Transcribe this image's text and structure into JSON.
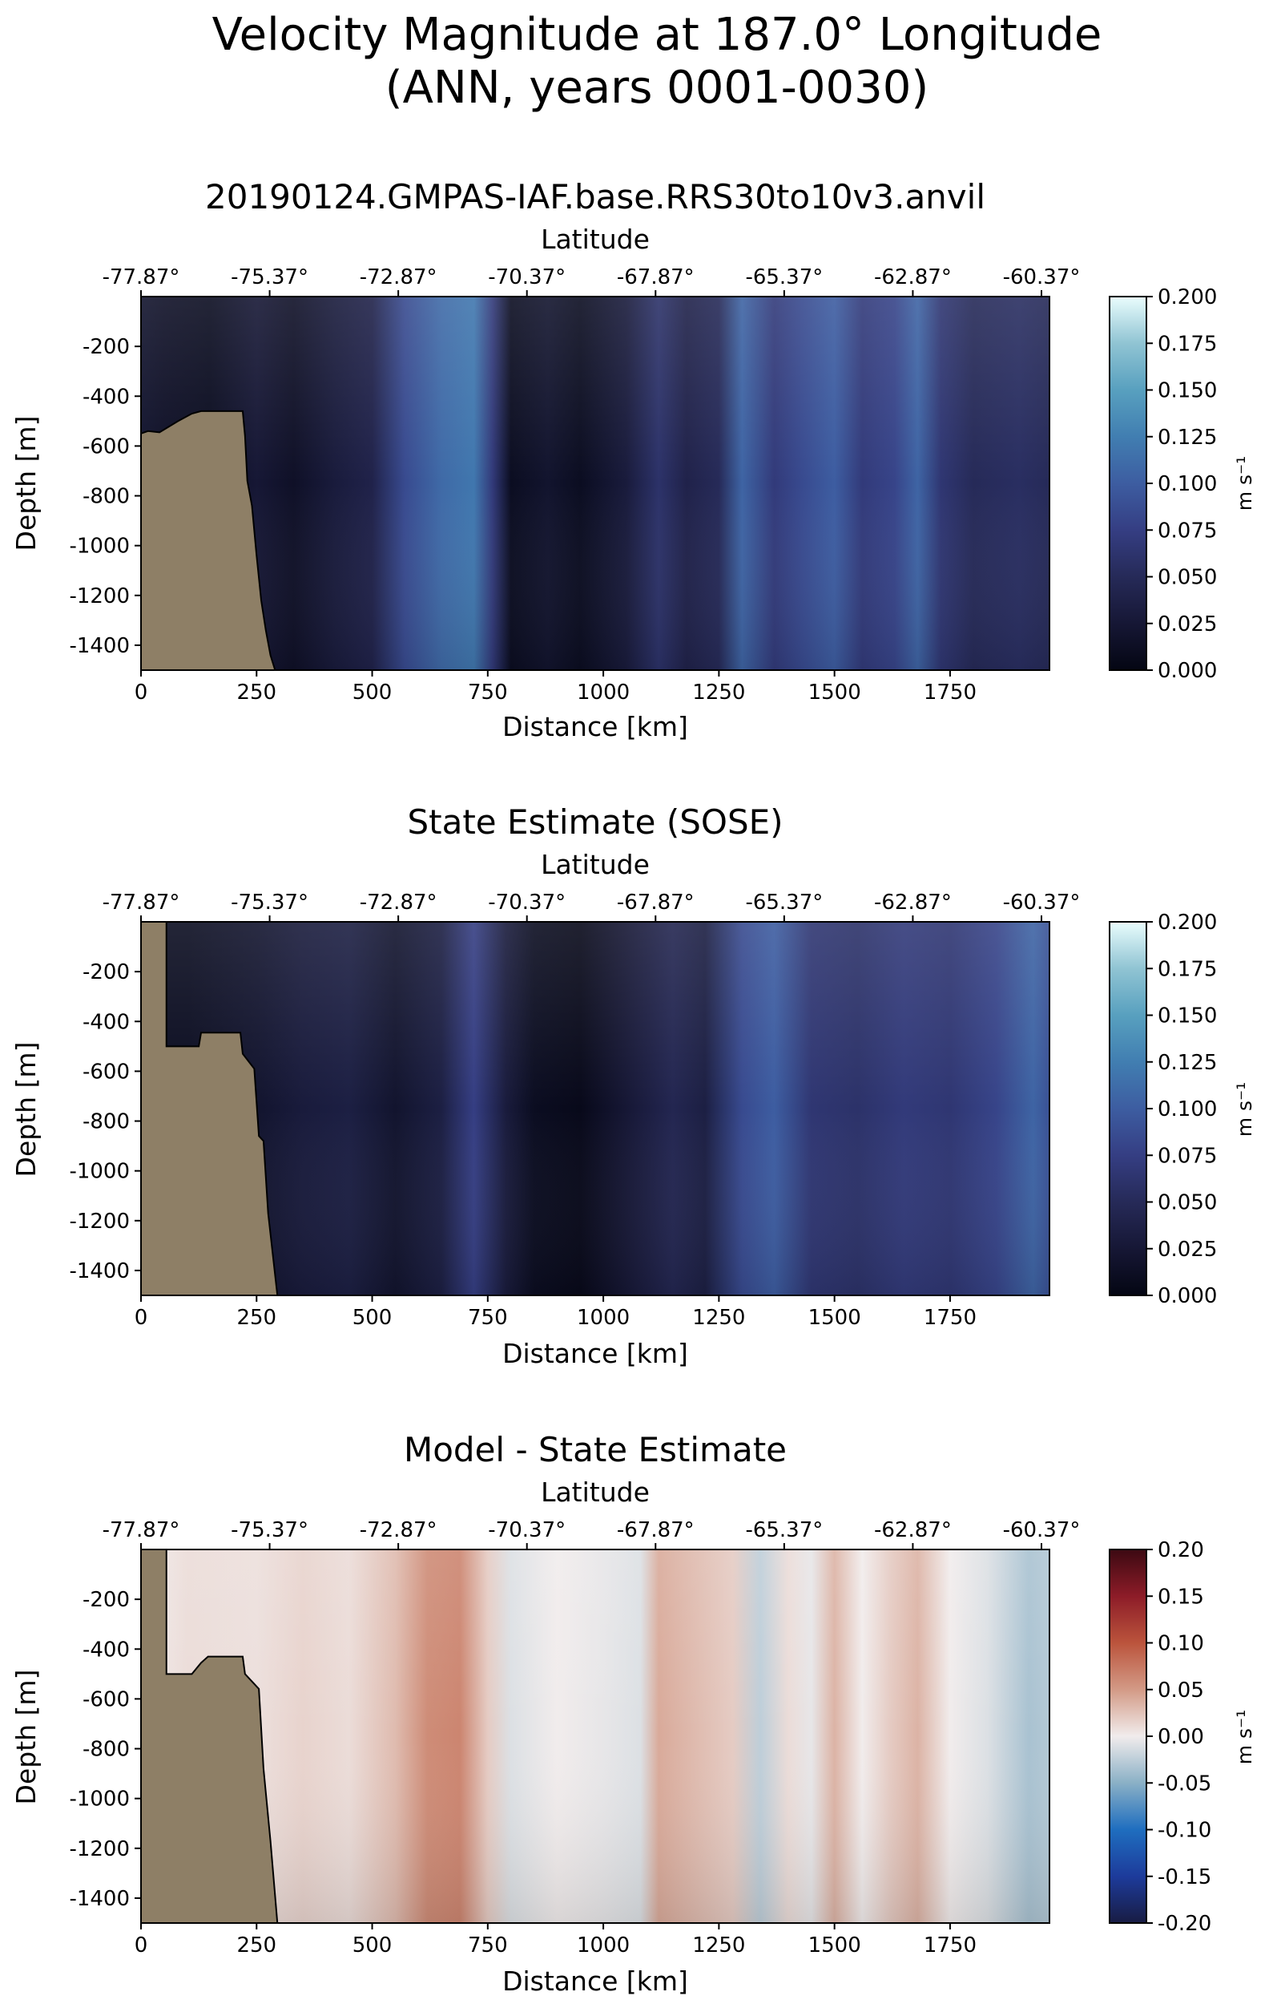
{
  "figure": {
    "title_line1": "Velocity Magnitude at 187.0° Longitude",
    "title_line2": "(ANN, years 0001-0030)"
  },
  "chart_data": [
    {
      "type": "heatmap",
      "title": "20190124.GMPAS-IAF.base.RRS30to10v3.anvil",
      "xlabel": "Distance [km]",
      "ylabel": "Depth [m]",
      "top_axis_label": "Latitude",
      "xlim": [
        0,
        1965
      ],
      "ylim": [
        -1500,
        0
      ],
      "x_ticks": [
        "0",
        "250",
        "500",
        "750",
        "1000",
        "1250",
        "1500",
        "1750"
      ],
      "y_ticks": [
        "-200",
        "-400",
        "-600",
        "-800",
        "-1000",
        "-1200",
        "-1400"
      ],
      "latitude_ticks": [
        "-77.87°",
        "-75.37°",
        "-72.87°",
        "-70.37°",
        "-67.87°",
        "-65.37°",
        "-62.87°",
        "-60.37°"
      ],
      "colorbar": {
        "label": "m s⁻¹",
        "colormap": "cmocean.ice",
        "range": [
          0.0,
          0.2
        ],
        "ticks": [
          "0.000",
          "0.025",
          "0.050",
          "0.075",
          "0.100",
          "0.125",
          "0.150",
          "0.175",
          "0.200"
        ]
      },
      "velocity_profile_by_distance": [
        {
          "x": 0,
          "value": 0.02
        },
        {
          "x": 50,
          "value": 0.015
        },
        {
          "x": 150,
          "value": 0.01
        },
        {
          "x": 250,
          "value": 0.025
        },
        {
          "x": 330,
          "value": 0.015
        },
        {
          "x": 420,
          "value": 0.03
        },
        {
          "x": 500,
          "value": 0.04
        },
        {
          "x": 570,
          "value": 0.085
        },
        {
          "x": 650,
          "value": 0.11
        },
        {
          "x": 720,
          "value": 0.12
        },
        {
          "x": 760,
          "value": 0.07
        },
        {
          "x": 800,
          "value": 0.01
        },
        {
          "x": 880,
          "value": 0.02
        },
        {
          "x": 950,
          "value": 0.01
        },
        {
          "x": 1050,
          "value": 0.03
        },
        {
          "x": 1120,
          "value": 0.06
        },
        {
          "x": 1180,
          "value": 0.04
        },
        {
          "x": 1250,
          "value": 0.05
        },
        {
          "x": 1300,
          "value": 0.105
        },
        {
          "x": 1370,
          "value": 0.07
        },
        {
          "x": 1430,
          "value": 0.085
        },
        {
          "x": 1500,
          "value": 0.1
        },
        {
          "x": 1560,
          "value": 0.07
        },
        {
          "x": 1630,
          "value": 0.08
        },
        {
          "x": 1680,
          "value": 0.105
        },
        {
          "x": 1730,
          "value": 0.065
        },
        {
          "x": 1800,
          "value": 0.05
        },
        {
          "x": 1900,
          "value": 0.055
        },
        {
          "x": 1965,
          "value": 0.05
        }
      ],
      "bathymetry_depth": [
        {
          "x": 0,
          "depth": -550
        },
        {
          "x": 15,
          "depth": -540
        },
        {
          "x": 40,
          "depth": -545
        },
        {
          "x": 80,
          "depth": -500
        },
        {
          "x": 110,
          "depth": -470
        },
        {
          "x": 130,
          "depth": -460
        },
        {
          "x": 220,
          "depth": -460
        },
        {
          "x": 225,
          "depth": -560
        },
        {
          "x": 230,
          "depth": -740
        },
        {
          "x": 240,
          "depth": -840
        },
        {
          "x": 250,
          "depth": -1040
        },
        {
          "x": 260,
          "depth": -1220
        },
        {
          "x": 270,
          "depth": -1340
        },
        {
          "x": 280,
          "depth": -1440
        },
        {
          "x": 290,
          "depth": -1500
        }
      ]
    },
    {
      "type": "heatmap",
      "title": "State Estimate (SOSE)",
      "xlabel": "Distance [km]",
      "ylabel": "Depth [m]",
      "top_axis_label": "Latitude",
      "xlim": [
        0,
        1965
      ],
      "ylim": [
        -1500,
        0
      ],
      "x_ticks": [
        "0",
        "250",
        "500",
        "750",
        "1000",
        "1250",
        "1500",
        "1750"
      ],
      "y_ticks": [
        "-200",
        "-400",
        "-600",
        "-800",
        "-1000",
        "-1200",
        "-1400"
      ],
      "latitude_ticks": [
        "-77.87°",
        "-75.37°",
        "-72.87°",
        "-70.37°",
        "-67.87°",
        "-65.37°",
        "-62.87°",
        "-60.37°"
      ],
      "colorbar": {
        "label": "m s⁻¹",
        "colormap": "cmocean.ice",
        "range": [
          0.0,
          0.2
        ],
        "ticks": [
          "0.000",
          "0.025",
          "0.050",
          "0.075",
          "0.100",
          "0.125",
          "0.150",
          "0.175",
          "0.200"
        ]
      },
      "velocity_profile_by_distance": [
        {
          "x": 0,
          "value": 0.01
        },
        {
          "x": 100,
          "value": 0.01
        },
        {
          "x": 250,
          "value": 0.02
        },
        {
          "x": 350,
          "value": 0.03
        },
        {
          "x": 450,
          "value": 0.035
        },
        {
          "x": 550,
          "value": 0.02
        },
        {
          "x": 650,
          "value": 0.035
        },
        {
          "x": 720,
          "value": 0.075
        },
        {
          "x": 790,
          "value": 0.03
        },
        {
          "x": 850,
          "value": 0.01
        },
        {
          "x": 950,
          "value": 0.005
        },
        {
          "x": 1050,
          "value": 0.025
        },
        {
          "x": 1150,
          "value": 0.045
        },
        {
          "x": 1220,
          "value": 0.035
        },
        {
          "x": 1300,
          "value": 0.085
        },
        {
          "x": 1370,
          "value": 0.1
        },
        {
          "x": 1450,
          "value": 0.065
        },
        {
          "x": 1550,
          "value": 0.06
        },
        {
          "x": 1650,
          "value": 0.07
        },
        {
          "x": 1750,
          "value": 0.065
        },
        {
          "x": 1850,
          "value": 0.08
        },
        {
          "x": 1930,
          "value": 0.105
        },
        {
          "x": 1965,
          "value": 0.09
        }
      ],
      "bathymetry_depth": [
        {
          "x": 0,
          "depth": 0
        },
        {
          "x": 55,
          "depth": 0
        },
        {
          "x": 55,
          "depth": -500
        },
        {
          "x": 125,
          "depth": -500
        },
        {
          "x": 130,
          "depth": -445
        },
        {
          "x": 215,
          "depth": -445
        },
        {
          "x": 220,
          "depth": -530
        },
        {
          "x": 245,
          "depth": -590
        },
        {
          "x": 255,
          "depth": -860
        },
        {
          "x": 265,
          "depth": -880
        },
        {
          "x": 275,
          "depth": -1170
        },
        {
          "x": 295,
          "depth": -1500
        }
      ]
    },
    {
      "type": "heatmap",
      "title": "Model - State Estimate",
      "xlabel": "Distance [km]",
      "ylabel": "Depth [m]",
      "top_axis_label": "Latitude",
      "xlim": [
        0,
        1965
      ],
      "ylim": [
        -1500,
        0
      ],
      "x_ticks": [
        "0",
        "250",
        "500",
        "750",
        "1000",
        "1250",
        "1500",
        "1750"
      ],
      "y_ticks": [
        "-200",
        "-400",
        "-600",
        "-800",
        "-1000",
        "-1200",
        "-1400"
      ],
      "latitude_ticks": [
        "-77.87°",
        "-75.37°",
        "-72.87°",
        "-70.37°",
        "-67.87°",
        "-65.37°",
        "-62.87°",
        "-60.37°"
      ],
      "colorbar": {
        "label": "m s⁻¹",
        "colormap": "cmocean.balance",
        "range": [
          -0.2,
          0.2
        ],
        "ticks": [
          "-0.20",
          "-0.15",
          "-0.10",
          "-0.05",
          "0.00",
          "0.05",
          "0.10",
          "0.15",
          "0.20"
        ]
      },
      "difference_profile_by_distance": [
        {
          "x": 0,
          "value": 0.0
        },
        {
          "x": 100,
          "value": 0.01
        },
        {
          "x": 250,
          "value": 0.008
        },
        {
          "x": 350,
          "value": 0.015
        },
        {
          "x": 450,
          "value": 0.01
        },
        {
          "x": 550,
          "value": 0.03
        },
        {
          "x": 620,
          "value": 0.06
        },
        {
          "x": 690,
          "value": 0.065
        },
        {
          "x": 750,
          "value": 0.02
        },
        {
          "x": 800,
          "value": -0.01
        },
        {
          "x": 900,
          "value": 0.0
        },
        {
          "x": 1000,
          "value": -0.005
        },
        {
          "x": 1080,
          "value": -0.01
        },
        {
          "x": 1120,
          "value": 0.04
        },
        {
          "x": 1200,
          "value": 0.03
        },
        {
          "x": 1280,
          "value": 0.02
        },
        {
          "x": 1340,
          "value": -0.025
        },
        {
          "x": 1400,
          "value": 0.01
        },
        {
          "x": 1450,
          "value": -0.005
        },
        {
          "x": 1500,
          "value": 0.035
        },
        {
          "x": 1560,
          "value": 0.0
        },
        {
          "x": 1620,
          "value": 0.02
        },
        {
          "x": 1680,
          "value": 0.035
        },
        {
          "x": 1750,
          "value": 0.0
        },
        {
          "x": 1830,
          "value": -0.01
        },
        {
          "x": 1920,
          "value": -0.035
        },
        {
          "x": 1965,
          "value": -0.03
        }
      ],
      "bathymetry_depth": [
        {
          "x": 0,
          "depth": 0
        },
        {
          "x": 55,
          "depth": 0
        },
        {
          "x": 55,
          "depth": -500
        },
        {
          "x": 110,
          "depth": -500
        },
        {
          "x": 130,
          "depth": -455
        },
        {
          "x": 145,
          "depth": -430
        },
        {
          "x": 220,
          "depth": -430
        },
        {
          "x": 225,
          "depth": -500
        },
        {
          "x": 255,
          "depth": -560
        },
        {
          "x": 265,
          "depth": -880
        },
        {
          "x": 280,
          "depth": -1170
        },
        {
          "x": 295,
          "depth": -1500
        }
      ]
    }
  ]
}
